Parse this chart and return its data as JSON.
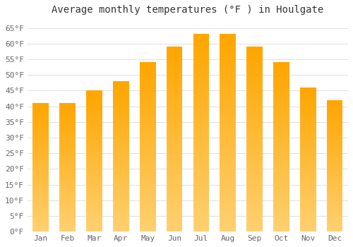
{
  "title": "Average monthly temperatures (°F ) in Houlgate",
  "months": [
    "Jan",
    "Feb",
    "Mar",
    "Apr",
    "May",
    "Jun",
    "Jul",
    "Aug",
    "Sep",
    "Oct",
    "Nov",
    "Dec"
  ],
  "values": [
    41,
    41,
    45,
    48,
    54,
    59,
    63,
    63,
    59,
    54,
    46,
    42
  ],
  "bar_color_bottom": "#FFD070",
  "bar_color_top": "#FFA500",
  "ylim": [
    0,
    68
  ],
  "yticks": [
    0,
    5,
    10,
    15,
    20,
    25,
    30,
    35,
    40,
    45,
    50,
    55,
    60,
    65
  ],
  "ytick_labels": [
    "0°F",
    "5°F",
    "10°F",
    "15°F",
    "20°F",
    "25°F",
    "30°F",
    "35°F",
    "40°F",
    "45°F",
    "50°F",
    "55°F",
    "60°F",
    "65°F"
  ],
  "background_color": "#FFFFFF",
  "grid_color": "#E0E0E0",
  "title_fontsize": 10,
  "tick_fontsize": 8,
  "bar_width": 0.6
}
